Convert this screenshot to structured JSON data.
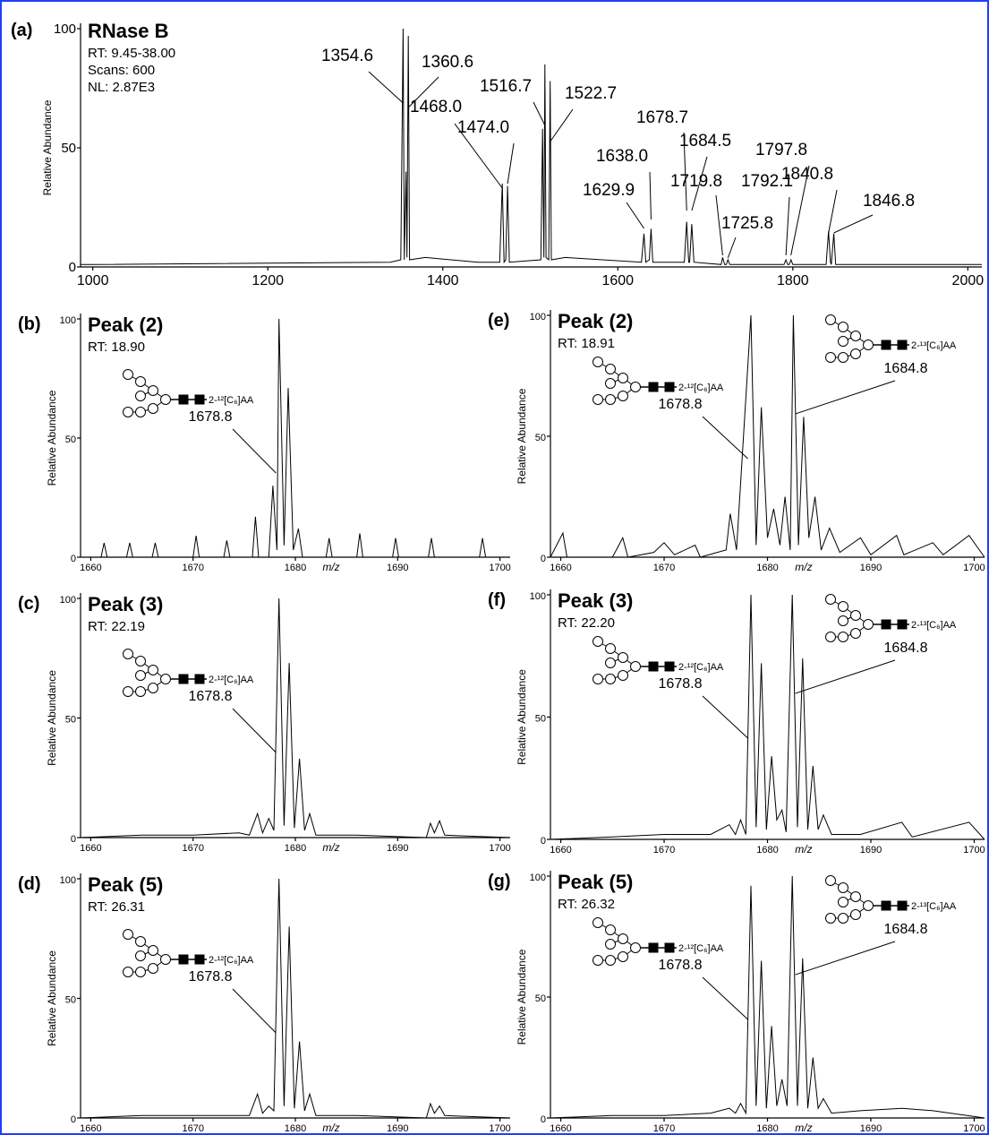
{
  "chart_data": [
    {
      "type": "line",
      "panel": "(a)",
      "title": "RNase B",
      "subtitle": [
        "RT: 9.45-38.00",
        "Scans: 600",
        "NL: 2.87E3"
      ],
      "ylabel": "Relative Abundance",
      "color": "#000000",
      "xlim": [
        986,
        2016
      ],
      "ylim": [
        0,
        100
      ],
      "xticks": [
        1000,
        1200,
        1400,
        1600,
        1800,
        2000
      ],
      "yticks": [
        0,
        50,
        100
      ],
      "x": [
        986,
        1000,
        1340,
        1352,
        1354.6,
        1356,
        1358,
        1359,
        1360.6,
        1362,
        1380,
        1440,
        1465,
        1468,
        1470,
        1472,
        1474,
        1476,
        1512,
        1514,
        1515.5,
        1516.7,
        1518,
        1521,
        1522.7,
        1524,
        1540,
        1627,
        1629.9,
        1632,
        1636,
        1638,
        1640,
        1676,
        1678.7,
        1681,
        1682,
        1684.5,
        1687,
        1718,
        1719.8,
        1722,
        1724,
        1725.8,
        1728,
        1790,
        1792.1,
        1794,
        1796,
        1797.8,
        1800,
        1838,
        1840.8,
        1843,
        1844,
        1846.8,
        1849,
        2016
      ],
      "values": [
        1,
        1,
        2,
        3,
        100,
        3,
        40,
        4,
        97,
        3,
        4,
        2,
        2,
        35,
        2,
        3,
        34,
        2,
        3,
        58,
        4,
        85,
        4,
        3,
        78,
        3,
        4,
        2,
        14,
        2,
        3,
        16,
        2,
        2,
        19,
        2,
        2,
        18,
        2,
        1,
        4,
        1,
        1,
        3,
        1,
        1,
        3,
        1,
        1,
        3,
        1,
        1,
        15,
        2,
        1,
        14,
        1,
        1
      ],
      "peak_labels": [
        1354.6,
        1360.6,
        1468.0,
        1474.0,
        1516.7,
        1522.7,
        1629.9,
        1638.0,
        1678.7,
        1684.5,
        1719.8,
        1725.8,
        1792.1,
        1797.8,
        1840.8,
        1846.8
      ],
      "peak_value_labels": [
        "1354.6",
        "1360.6",
        "1468.0",
        "1474.0",
        "1516.7",
        "1522.7",
        "1629.9",
        "1638.0",
        "1678.7",
        "1684.5",
        "1719.8",
        "1725.8",
        "1792.1",
        "1797.8",
        "1840.8",
        "1846.8"
      ]
    },
    {
      "type": "line",
      "panel": "(b)",
      "title": "Peak (2)",
      "subtitle": [
        "RT: 18.90"
      ],
      "ylabel": "Relative Abundance",
      "xlabel": "m/z",
      "color": "#000000",
      "xlim": [
        1659,
        1701
      ],
      "ylim": [
        0,
        100
      ],
      "xticks": [
        1660,
        1670,
        1680,
        1690,
        1700
      ],
      "yticks": [
        0,
        50,
        100
      ],
      "x": [
        1659,
        1661,
        1661.3,
        1661.6,
        1663.5,
        1663.8,
        1664.1,
        1666,
        1666.3,
        1666.6,
        1670,
        1670.3,
        1670.6,
        1673,
        1673.3,
        1673.6,
        1675.8,
        1676.1,
        1676.4,
        1677.4,
        1677.8,
        1678.2,
        1678.4,
        1678.9,
        1679.3,
        1679.8,
        1680.3,
        1680.7,
        1683,
        1683.3,
        1683.6,
        1686,
        1686.3,
        1686.6,
        1689.5,
        1689.8,
        1690.1,
        1693,
        1693.3,
        1693.6,
        1698,
        1698.3,
        1698.6,
        1701
      ],
      "values": [
        0,
        0,
        6,
        0,
        0,
        6,
        0,
        0,
        6,
        0,
        0,
        9,
        0,
        0,
        7,
        0,
        0,
        17,
        0,
        0,
        30,
        3,
        100,
        5,
        71,
        3,
        12,
        0,
        0,
        8,
        0,
        0,
        10,
        0,
        0,
        8,
        0,
        0,
        8,
        0,
        0,
        8,
        0,
        0
      ],
      "peak_labels": [
        1678.8
      ],
      "tags": [
        "2-¹²[C₆]AA"
      ]
    },
    {
      "type": "line",
      "panel": "(c)",
      "title": "Peak (3)",
      "subtitle": [
        "RT: 22.19"
      ],
      "ylabel": "Relative Abundance",
      "xlabel": "m/z",
      "color": "#000000",
      "xlim": [
        1659,
        1701
      ],
      "ylim": [
        0,
        100
      ],
      "xticks": [
        1660,
        1670,
        1680,
        1690,
        1700
      ],
      "yticks": [
        0,
        50,
        100
      ],
      "x": [
        1659,
        1665,
        1670,
        1674.5,
        1675.5,
        1676.3,
        1676.8,
        1677.4,
        1677.9,
        1678.4,
        1678.9,
        1679.4,
        1679.9,
        1680.4,
        1680.9,
        1681.4,
        1682,
        1686,
        1692.8,
        1693.2,
        1693.6,
        1694.1,
        1694.6,
        1701
      ],
      "values": [
        0,
        1,
        1,
        2,
        1,
        10,
        2,
        8,
        3,
        100,
        5,
        73,
        4,
        33,
        3,
        10,
        1,
        1,
        0,
        6,
        2,
        7,
        1,
        0
      ],
      "peak_labels": [
        1678.8
      ],
      "tags": [
        "2-¹²[C₆]AA"
      ]
    },
    {
      "type": "line",
      "panel": "(d)",
      "title": "Peak (5)",
      "subtitle": [
        "RT: 26.31"
      ],
      "ylabel": "Relative Abundance",
      "xlabel": "m/z",
      "color": "#000000",
      "xlim": [
        1659,
        1701
      ],
      "ylim": [
        0,
        100
      ],
      "xticks": [
        1660,
        1670,
        1680,
        1690,
        1700
      ],
      "yticks": [
        0,
        50,
        100
      ],
      "x": [
        1659,
        1665,
        1670,
        1675.5,
        1676.3,
        1676.8,
        1677.4,
        1677.9,
        1678.4,
        1678.9,
        1679.4,
        1679.9,
        1680.4,
        1680.9,
        1681.4,
        1682,
        1686,
        1692.8,
        1693.2,
        1693.6,
        1694.1,
        1694.6,
        1701
      ],
      "values": [
        0,
        1,
        1,
        1,
        10,
        2,
        5,
        3,
        100,
        5,
        80,
        4,
        32,
        3,
        10,
        1,
        1,
        0,
        6,
        2,
        5,
        1,
        0
      ],
      "peak_labels": [
        1678.8
      ],
      "tags": [
        "2-¹²[C₆]AA"
      ]
    },
    {
      "type": "line",
      "panel": "(e)",
      "title": "Peak (2)",
      "subtitle": [
        "RT: 18.91"
      ],
      "ylabel": "Relative Abundance",
      "xlabel": "m/z",
      "color": "#000000",
      "xlim": [
        1659,
        1701
      ],
      "ylim": [
        0,
        100
      ],
      "xticks": [
        1660,
        1670,
        1680,
        1690,
        1700
      ],
      "yticks": [
        0,
        50,
        100
      ],
      "x": [
        1659,
        1660.2,
        1660.6,
        1665,
        1666,
        1666.5,
        1669,
        1670,
        1671,
        1673,
        1673.5,
        1676,
        1676.4,
        1677,
        1678.4,
        1678.9,
        1679.4,
        1680,
        1680.6,
        1681.2,
        1681.7,
        1682.2,
        1682.5,
        1683,
        1683.5,
        1684,
        1684.6,
        1685.2,
        1686,
        1687,
        1689,
        1690,
        1692.5,
        1693.2,
        1696,
        1697,
        1699.5,
        1701
      ],
      "values": [
        0,
        10,
        0,
        0,
        8,
        0,
        2,
        6,
        1,
        5,
        0,
        3,
        18,
        3,
        100,
        5,
        62,
        8,
        20,
        5,
        25,
        3,
        100,
        5,
        58,
        8,
        25,
        3,
        12,
        2,
        8,
        1,
        9,
        1,
        6,
        1,
        9,
        0
      ],
      "peak_labels": [
        1678.8,
        1684.8
      ],
      "tags": [
        "2-¹²[C₆]AA",
        "2-¹³[C₆]AA"
      ]
    },
    {
      "type": "line",
      "panel": "(f)",
      "title": "Peak (3)",
      "subtitle": [
        "RT: 22.20"
      ],
      "ylabel": "Relative Abundance",
      "xlabel": "m/z",
      "color": "#000000",
      "xlim": [
        1659,
        1701
      ],
      "ylim": [
        0,
        100
      ],
      "xticks": [
        1660,
        1670,
        1680,
        1690,
        1700
      ],
      "yticks": [
        0,
        50,
        100
      ],
      "x": [
        1659,
        1665,
        1670,
        1674.5,
        1676.3,
        1676.9,
        1677.4,
        1677.9,
        1678.4,
        1678.9,
        1679.4,
        1679.9,
        1680.4,
        1680.9,
        1681.4,
        1681.8,
        1682.4,
        1682.9,
        1683.4,
        1683.9,
        1684.4,
        1684.9,
        1685.4,
        1686.2,
        1689,
        1693,
        1694,
        1699.5,
        1701
      ],
      "values": [
        0,
        1,
        2,
        2,
        6,
        2,
        8,
        2,
        100,
        5,
        72,
        4,
        34,
        8,
        12,
        3,
        100,
        5,
        74,
        4,
        30,
        4,
        10,
        2,
        2,
        7,
        1,
        7,
        0
      ],
      "peak_labels": [
        1678.8,
        1684.8
      ],
      "tags": [
        "2-¹²[C₆]AA",
        "2-¹³[C₆]AA"
      ]
    },
    {
      "type": "line",
      "panel": "(g)",
      "title": "Peak (5)",
      "subtitle": [
        "RT: 26.32"
      ],
      "ylabel": "Relative Abundance",
      "xlabel": "m/z",
      "color": "#000000",
      "xlim": [
        1659,
        1701
      ],
      "ylim": [
        0,
        100
      ],
      "xticks": [
        1660,
        1670,
        1680,
        1690,
        1700
      ],
      "yticks": [
        0,
        50,
        100
      ],
      "x": [
        1659,
        1665,
        1670,
        1674.5,
        1676.3,
        1676.9,
        1677.4,
        1677.9,
        1678.4,
        1678.9,
        1679.4,
        1679.9,
        1680.4,
        1680.9,
        1681.4,
        1681.9,
        1682.4,
        1682.9,
        1683.4,
        1683.9,
        1684.4,
        1684.9,
        1685.4,
        1686.2,
        1689,
        1693,
        1696,
        1701
      ],
      "values": [
        0,
        1,
        1,
        2,
        4,
        2,
        6,
        2,
        96,
        5,
        65,
        4,
        38,
        5,
        16,
        5,
        100,
        5,
        66,
        4,
        25,
        4,
        8,
        2,
        3,
        4,
        3,
        0
      ],
      "peak_labels": [
        1678.8,
        1684.8
      ],
      "tags": [
        "2-¹²[C₆]AA",
        "2-¹³[C₆]AA"
      ]
    }
  ]
}
